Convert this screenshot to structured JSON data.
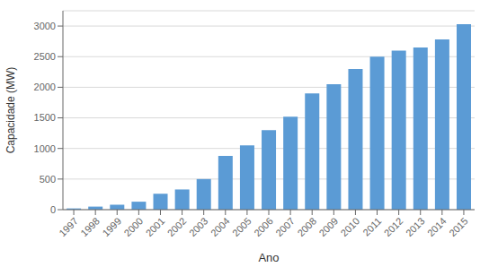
{
  "chart_data": {
    "type": "bar",
    "xlabel": "Ano",
    "ylabel": "Capacidade (MW)",
    "categories": [
      "1997",
      "1998",
      "1999",
      "2000",
      "2001",
      "2002",
      "2003",
      "2004",
      "2005",
      "2006",
      "2007",
      "2008",
      "2009",
      "2010",
      "2011",
      "2012",
      "2013",
      "2014",
      "2015"
    ],
    "values": [
      20,
      50,
      80,
      130,
      260,
      330,
      500,
      880,
      1050,
      1300,
      1520,
      1900,
      2050,
      2300,
      2500,
      2600,
      2650,
      2780,
      3030
    ],
    "color": "#5B9BD5",
    "ylim": [
      0,
      3250
    ],
    "yticks": [
      0,
      500,
      1000,
      1500,
      2000,
      2500,
      3000
    ],
    "grid": true
  }
}
